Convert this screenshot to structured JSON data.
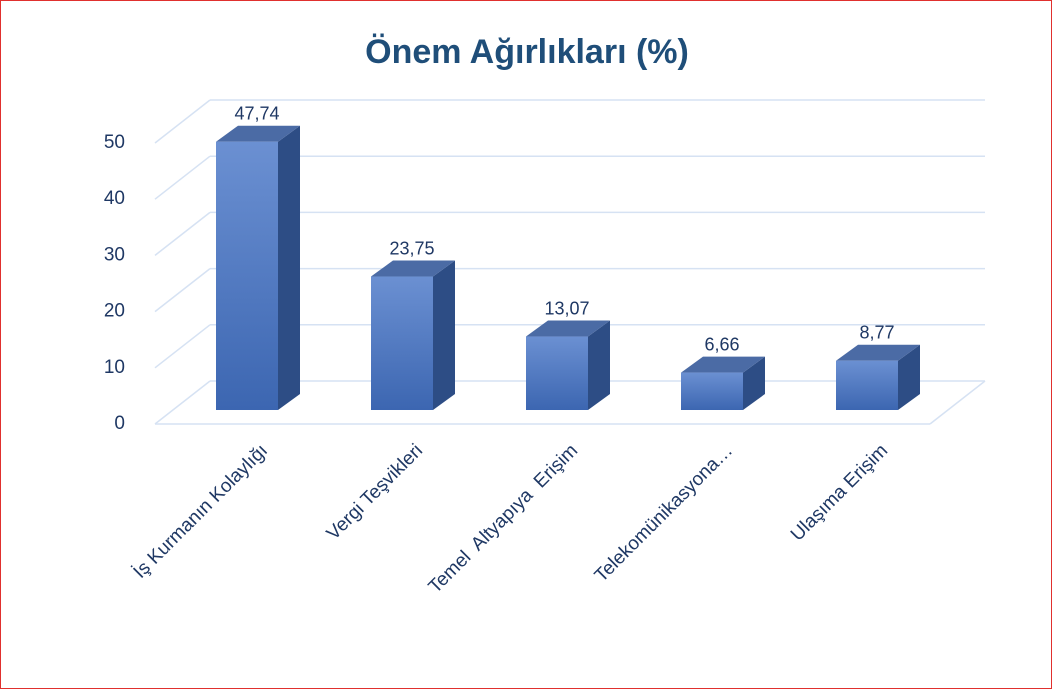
{
  "chart_data": {
    "type": "bar3d",
    "title": "Önem Ağırlıkları (%)",
    "categories": [
      "İş Kurmanın Kolaylığı",
      "Vergi Teşvikleri",
      "Temel  Altyapıya  Erişim",
      "Telekomünikasyona…",
      "Ulaşıma Erişim"
    ],
    "values": [
      47.74,
      23.75,
      13.07,
      6.66,
      8.77
    ],
    "value_labels": [
      "47,74",
      "23,75",
      "13,07",
      "6,66",
      "8,77"
    ],
    "color": "#4a74bd",
    "ylim": [
      0,
      50
    ],
    "yticks": [
      0,
      10,
      20,
      30,
      40,
      50
    ],
    "grid": true
  }
}
